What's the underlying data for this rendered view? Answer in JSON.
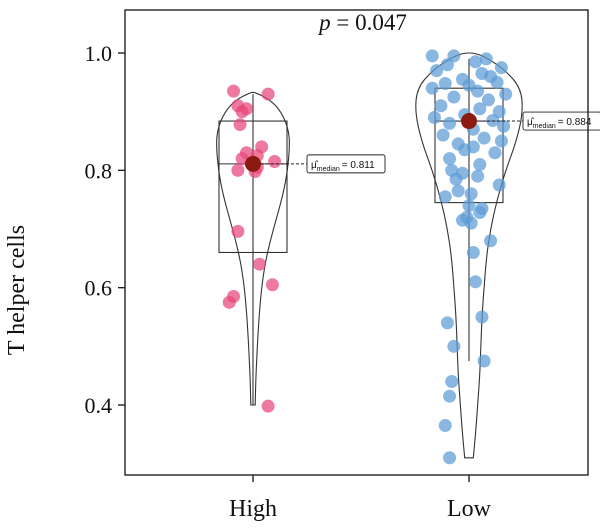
{
  "chart_data": {
    "type": "violin-box-scatter",
    "title_italic": "p",
    "title_rest": " = 0.047",
    "ylabel": "T helper cells",
    "ylim": [
      0.3,
      1.05
    ],
    "yticks": [
      0.4,
      0.6,
      0.8,
      1.0
    ],
    "ytick_labels": [
      "0.4",
      "0.6",
      "0.8",
      "1.0"
    ],
    "categories": [
      "High",
      "Low"
    ],
    "groups": [
      {
        "name": "High",
        "color": "#e8457a",
        "median_color": "#8b1a10",
        "box": {
          "q1": 0.66,
          "median": 0.811,
          "q3": 0.884
        },
        "whisker": [
          0.4,
          0.93
        ],
        "median_label": "= 0.811",
        "violin": [
          [
            0.4,
            0.01
          ],
          [
            0.43,
            0.012
          ],
          [
            0.46,
            0.015
          ],
          [
            0.5,
            0.02
          ],
          [
            0.55,
            0.028
          ],
          [
            0.6,
            0.04
          ],
          [
            0.64,
            0.055
          ],
          [
            0.68,
            0.08
          ],
          [
            0.72,
            0.11
          ],
          [
            0.76,
            0.14
          ],
          [
            0.8,
            0.16
          ],
          [
            0.84,
            0.17
          ],
          [
            0.87,
            0.165
          ],
          [
            0.9,
            0.13
          ],
          [
            0.92,
            0.08
          ],
          [
            0.933,
            0.01
          ]
        ],
        "points": [
          [
            0.935,
            -0.09
          ],
          [
            0.93,
            0.07
          ],
          [
            0.91,
            -0.07
          ],
          [
            0.905,
            -0.03
          ],
          [
            0.9,
            -0.05
          ],
          [
            0.878,
            -0.06
          ],
          [
            0.84,
            0.04
          ],
          [
            0.83,
            -0.03
          ],
          [
            0.825,
            0.02
          ],
          [
            0.82,
            -0.05
          ],
          [
            0.815,
            0.1
          ],
          [
            0.81,
            0.0
          ],
          [
            0.805,
            0.02
          ],
          [
            0.8,
            -0.07
          ],
          [
            0.798,
            0.01
          ],
          [
            0.696,
            -0.07
          ],
          [
            0.64,
            0.03
          ],
          [
            0.605,
            0.09
          ],
          [
            0.585,
            -0.09
          ],
          [
            0.575,
            -0.11
          ],
          [
            0.398,
            0.07
          ]
        ]
      },
      {
        "name": "Low",
        "color": "#5b9bd5",
        "median_color": "#8b1a10",
        "box": {
          "q1": 0.745,
          "median": 0.884,
          "q3": 0.94
        },
        "whisker": [
          0.475,
          0.99
        ],
        "median_label": "= 0.884",
        "violin": [
          [
            0.31,
            0.02
          ],
          [
            0.35,
            0.03
          ],
          [
            0.4,
            0.04
          ],
          [
            0.45,
            0.05
          ],
          [
            0.5,
            0.055
          ],
          [
            0.55,
            0.06
          ],
          [
            0.6,
            0.07
          ],
          [
            0.65,
            0.08
          ],
          [
            0.7,
            0.1
          ],
          [
            0.75,
            0.13
          ],
          [
            0.8,
            0.17
          ],
          [
            0.85,
            0.22
          ],
          [
            0.9,
            0.25
          ],
          [
            0.94,
            0.24
          ],
          [
            0.97,
            0.17
          ],
          [
            0.99,
            0.09
          ],
          [
            1.0,
            0.03
          ]
        ],
        "points": [
          [
            0.995,
            -0.17
          ],
          [
            0.995,
            -0.07
          ],
          [
            0.99,
            0.08
          ],
          [
            0.985,
            0.03
          ],
          [
            0.98,
            -0.1
          ],
          [
            0.975,
            0.15
          ],
          [
            0.97,
            -0.15
          ],
          [
            0.965,
            0.06
          ],
          [
            0.96,
            0.1
          ],
          [
            0.955,
            -0.03
          ],
          [
            0.95,
            0.13
          ],
          [
            0.948,
            -0.11
          ],
          [
            0.945,
            0.0
          ],
          [
            0.94,
            -0.17
          ],
          [
            0.935,
            0.04
          ],
          [
            0.93,
            0.17
          ],
          [
            0.925,
            -0.07
          ],
          [
            0.92,
            0.09
          ],
          [
            0.91,
            -0.13
          ],
          [
            0.905,
            0.05
          ],
          [
            0.9,
            0.14
          ],
          [
            0.895,
            -0.02
          ],
          [
            0.89,
            -0.16
          ],
          [
            0.885,
            0.11
          ],
          [
            0.88,
            -0.09
          ],
          [
            0.875,
            0.16
          ],
          [
            0.87,
            0.02
          ],
          [
            0.86,
            -0.12
          ],
          [
            0.855,
            0.07
          ],
          [
            0.85,
            0.15
          ],
          [
            0.845,
            -0.05
          ],
          [
            0.84,
            0.02
          ],
          [
            0.835,
            -0.02
          ],
          [
            0.83,
            0.12
          ],
          [
            0.82,
            -0.09
          ],
          [
            0.81,
            0.05
          ],
          [
            0.8,
            -0.08
          ],
          [
            0.795,
            -0.03
          ],
          [
            0.79,
            0.04
          ],
          [
            0.785,
            -0.06
          ],
          [
            0.775,
            0.14
          ],
          [
            0.765,
            -0.05
          ],
          [
            0.76,
            0.01
          ],
          [
            0.755,
            -0.11
          ],
          [
            0.74,
            0.0
          ],
          [
            0.735,
            0.06
          ],
          [
            0.728,
            0.05
          ],
          [
            0.72,
            -0.01
          ],
          [
            0.715,
            -0.03
          ],
          [
            0.71,
            0.01
          ],
          [
            0.68,
            0.1
          ],
          [
            0.66,
            0.02
          ],
          [
            0.61,
            0.03
          ],
          [
            0.55,
            0.06
          ],
          [
            0.54,
            -0.1
          ],
          [
            0.5,
            -0.07
          ],
          [
            0.475,
            0.07
          ],
          [
            0.44,
            -0.08
          ],
          [
            0.415,
            -0.09
          ],
          [
            0.365,
            -0.11
          ],
          [
            0.31,
            -0.09
          ]
        ]
      }
    ]
  }
}
